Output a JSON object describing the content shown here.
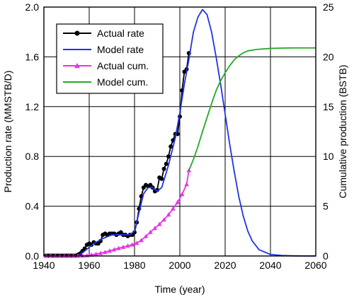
{
  "chart_data": {
    "type": "line",
    "xlabel": "Time (year)",
    "ylabel_left": "Production rate (MMSTB/D)",
    "ylabel_right": "Cumulative production (BSTB)",
    "xlim": [
      1940,
      2060
    ],
    "ylim_left": [
      0,
      2.0
    ],
    "ylim_right": [
      0,
      25
    ],
    "x_ticks": [
      "1940",
      "1960",
      "1980",
      "2000",
      "2020",
      "2040",
      "2060"
    ],
    "y_ticks_left": [
      "0.0",
      "0.4",
      "0.8",
      "1.2",
      "1.6",
      "2.0"
    ],
    "y_ticks_right": [
      "0",
      "5",
      "10",
      "15",
      "20",
      "25"
    ],
    "grid": true,
    "legend_position": "top-left",
    "series": [
      {
        "name": "Actual rate",
        "axis": "left",
        "color": "#000000",
        "marker": "circle",
        "x": [
          1941,
          1942,
          1943,
          1944,
          1945,
          1946,
          1947,
          1948,
          1949,
          1950,
          1951,
          1952,
          1953,
          1954,
          1955,
          1956,
          1957,
          1958,
          1959,
          1960,
          1961,
          1962,
          1963,
          1964,
          1965,
          1966,
          1967,
          1968,
          1969,
          1970,
          1971,
          1972,
          1973,
          1974,
          1975,
          1976,
          1977,
          1978,
          1979,
          1980,
          1981,
          1982,
          1983,
          1984,
          1985,
          1986,
          1987,
          1988,
          1989,
          1990,
          1991,
          1992,
          1993,
          1994,
          1995,
          1996,
          1997,
          1998,
          1999,
          2000,
          2001,
          2002,
          2003,
          2004
        ],
        "y": [
          0.003,
          0.003,
          0.003,
          0.003,
          0.003,
          0.003,
          0.003,
          0.003,
          0.003,
          0.003,
          0.003,
          0.003,
          0.003,
          0.003,
          0.01,
          0.02,
          0.04,
          0.06,
          0.09,
          0.1,
          0.09,
          0.11,
          0.1,
          0.1,
          0.12,
          0.17,
          0.18,
          0.17,
          0.18,
          0.18,
          0.18,
          0.17,
          0.18,
          0.19,
          0.17,
          0.17,
          0.16,
          0.17,
          0.17,
          0.19,
          0.27,
          0.38,
          0.48,
          0.55,
          0.57,
          0.56,
          0.57,
          0.55,
          0.52,
          0.53,
          0.63,
          0.62,
          0.7,
          0.74,
          0.8,
          0.88,
          0.93,
          0.98,
          0.98,
          1.12,
          1.33,
          1.48,
          1.5,
          1.63
        ]
      },
      {
        "name": "Model rate",
        "axis": "left",
        "color": "#1f33e6",
        "marker": "none",
        "x": [
          1940,
          1955,
          1958,
          1962,
          1966,
          1970,
          1975,
          1978,
          1980,
          1982,
          1984,
          1986,
          1988,
          1990,
          1992,
          1995,
          1998,
          2000,
          2002,
          2004,
          2006,
          2008,
          2010,
          2012,
          2014,
          2016,
          2018,
          2020,
          2022,
          2024,
          2026,
          2028,
          2030,
          2032,
          2035,
          2040,
          2045,
          2050,
          2055,
          2060
        ],
        "y": [
          0,
          0,
          0.04,
          0.1,
          0.14,
          0.17,
          0.17,
          0.17,
          0.2,
          0.35,
          0.5,
          0.55,
          0.55,
          0.52,
          0.55,
          0.73,
          0.95,
          1.15,
          1.38,
          1.58,
          1.8,
          1.92,
          1.98,
          1.94,
          1.8,
          1.6,
          1.38,
          1.14,
          0.9,
          0.68,
          0.48,
          0.32,
          0.2,
          0.12,
          0.05,
          0.012,
          0.004,
          0.001,
          0.0,
          0.0
        ]
      },
      {
        "name": "Actual cum.",
        "axis": "right",
        "color": "#e633e6",
        "marker": "triangle",
        "x": [
          1941,
          1943,
          1945,
          1947,
          1949,
          1951,
          1953,
          1955,
          1957,
          1959,
          1961,
          1963,
          1965,
          1967,
          1969,
          1971,
          1973,
          1975,
          1977,
          1979,
          1981,
          1983,
          1985,
          1987,
          1989,
          1991,
          1993,
          1995,
          1997,
          1999,
          2001,
          2003,
          2004
        ],
        "y": [
          0,
          0,
          0,
          0,
          0,
          0,
          0,
          0.01,
          0.02,
          0.05,
          0.12,
          0.2,
          0.28,
          0.39,
          0.52,
          0.65,
          0.78,
          0.9,
          1.02,
          1.14,
          1.3,
          1.58,
          1.98,
          2.4,
          2.8,
          3.2,
          3.65,
          4.15,
          4.75,
          5.4,
          6.2,
          7.2,
          8.6
        ]
      },
      {
        "name": "Model cum.",
        "axis": "right",
        "color": "#22aa22",
        "marker": "none",
        "x": [
          2004,
          2006,
          2008,
          2010,
          2012,
          2014,
          2016,
          2018,
          2020,
          2022,
          2024,
          2026,
          2028,
          2030,
          2034,
          2040,
          2045,
          2050,
          2060
        ],
        "y": [
          8.6,
          9.7,
          11.0,
          12.5,
          13.9,
          15.3,
          16.6,
          17.6,
          18.4,
          19.1,
          19.7,
          20.1,
          20.4,
          20.6,
          20.75,
          20.85,
          20.88,
          20.9,
          20.9
        ]
      }
    ]
  }
}
